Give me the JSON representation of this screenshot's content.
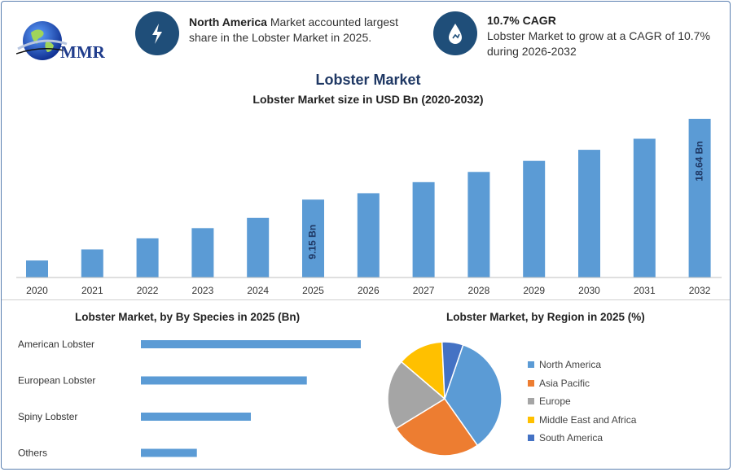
{
  "header": {
    "logo_text": "MMR",
    "info1": {
      "icon": "lightning-icon",
      "bold": "North America",
      "text_rest": " Market accounted largest",
      "line2": "share in the Lobster Market in 2025."
    },
    "info2": {
      "icon": "growth-drop-icon",
      "bold": "10.7% CAGR",
      "line1": "Lobster Market to grow at a CAGR of 10.7%",
      "line2": "during 2026-2032"
    }
  },
  "title": "Lobster Market",
  "subtitle": "Lobster Market size in USD Bn (2020-2032)",
  "species_title": "Lobster Market, by By Species in 2025 (Bn)",
  "region_title": "Lobster Market, by Region in 2025 (%)",
  "colors": {
    "bar": "#5b9bd5",
    "circle": "#1f4e79",
    "title": "#1f3864"
  },
  "chart_data": [
    {
      "type": "bar",
      "title": "Lobster Market size in USD Bn (2020-2032)",
      "categories": [
        "2020",
        "2021",
        "2022",
        "2023",
        "2024",
        "2025",
        "2026",
        "2027",
        "2028",
        "2029",
        "2030",
        "2031",
        "2032"
      ],
      "values": [
        2.0,
        3.3,
        4.6,
        5.8,
        7.0,
        9.15,
        9.9,
        11.2,
        12.4,
        13.7,
        15.0,
        16.3,
        18.64
      ],
      "data_labels": {
        "2025": "9.15 Bn",
        "2032": "18.64 Bn"
      },
      "ylim": [
        0,
        18.64
      ]
    },
    {
      "type": "bar",
      "orientation": "horizontal",
      "title": "Lobster Market, by By Species in 2025 (Bn)",
      "categories": [
        "American Lobster",
        "European Lobster",
        "Spiny Lobster",
        "Others"
      ],
      "values": [
        5.5,
        4.15,
        2.75,
        1.4
      ],
      "xlim": [
        0,
        5.5
      ]
    },
    {
      "type": "pie",
      "title": "Lobster Market, by Region in 2025 (%)",
      "labels": [
        "North America",
        "Asia Pacific",
        "Europe",
        "Middle East and Africa",
        "South America"
      ],
      "values": [
        35,
        26,
        20,
        13,
        6
      ],
      "colors": [
        "#5b9bd5",
        "#ed7d31",
        "#a5a5a5",
        "#ffc000",
        "#4472c4"
      ]
    }
  ]
}
